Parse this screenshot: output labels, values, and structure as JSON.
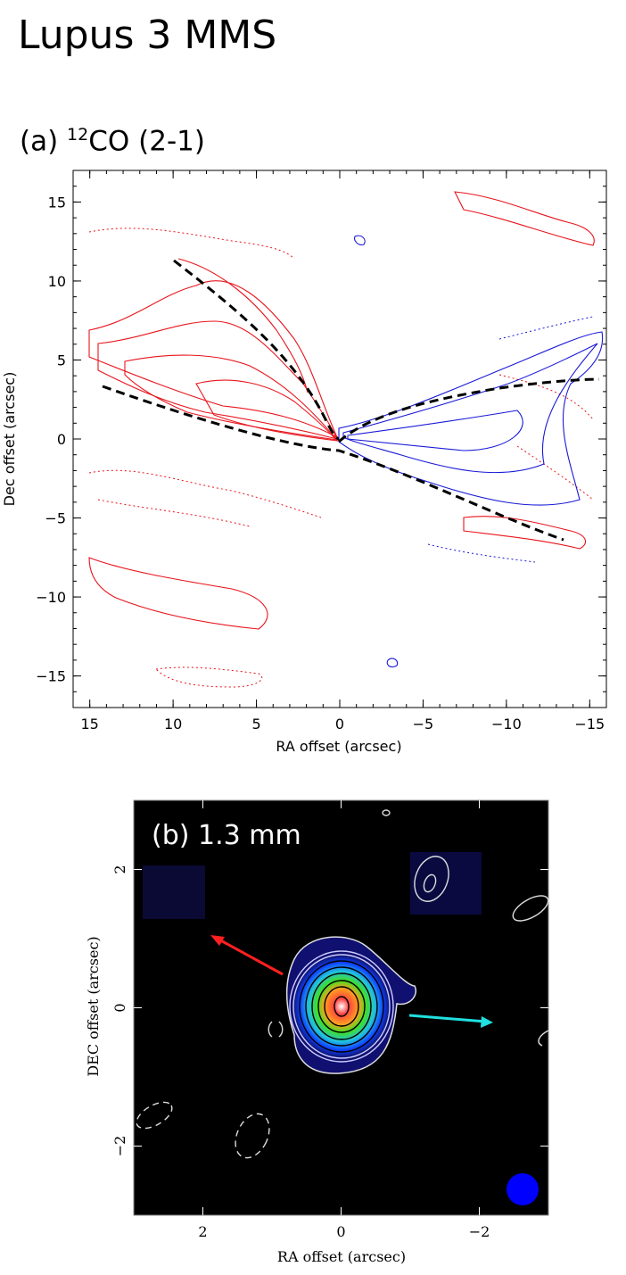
{
  "page_title": "Lupus 3 MMS",
  "chart_data": [
    {
      "type": "contour",
      "panel_label": "(a)",
      "title_sup": "12",
      "title_main": "CO (2-1)",
      "xlabel": "RA offset (arcsec)",
      "ylabel": "Dec offset (arcsec)",
      "xlim": [
        16,
        -16
      ],
      "ylim": [
        -17,
        17
      ],
      "xticks": [
        15,
        10,
        5,
        0,
        -5,
        -10,
        -15
      ],
      "xtick_labels": [
        "15",
        "10",
        "5",
        "0",
        "−5",
        "−10",
        "−15"
      ],
      "yticks": [
        15,
        10,
        5,
        0,
        -5,
        -10,
        -15
      ],
      "ytick_labels": [
        "15",
        "10",
        "5",
        "0",
        "−5",
        "−10",
        "−15"
      ],
      "series": [
        {
          "color": "#e8141c",
          "role": "redshifted lobe (east)"
        },
        {
          "color": "#1a1ad8",
          "role": "blueshifted lobe (west)"
        }
      ],
      "overlay": "black dashed parabolic outflow boundaries"
    },
    {
      "type": "image-with-contours",
      "label": "(b) 1.3 mm",
      "xlabel": "RA offset (arcsec)",
      "ylabel": "DEC offset (arcsec)",
      "xlim": [
        3,
        -3
      ],
      "ylim": [
        -3,
        3
      ],
      "xticks": [
        2,
        0,
        -2
      ],
      "xtick_labels": [
        "2",
        "0",
        "−2"
      ],
      "yticks": [
        2,
        0,
        -2
      ],
      "ytick_labels": [
        "2",
        "0",
        "−2"
      ],
      "arrows": [
        {
          "color": "#ff2020",
          "direction": "north-east"
        },
        {
          "color": "#20e0e0",
          "direction": "west"
        }
      ],
      "beam_color": "#0000ff",
      "background": "#000000"
    }
  ]
}
